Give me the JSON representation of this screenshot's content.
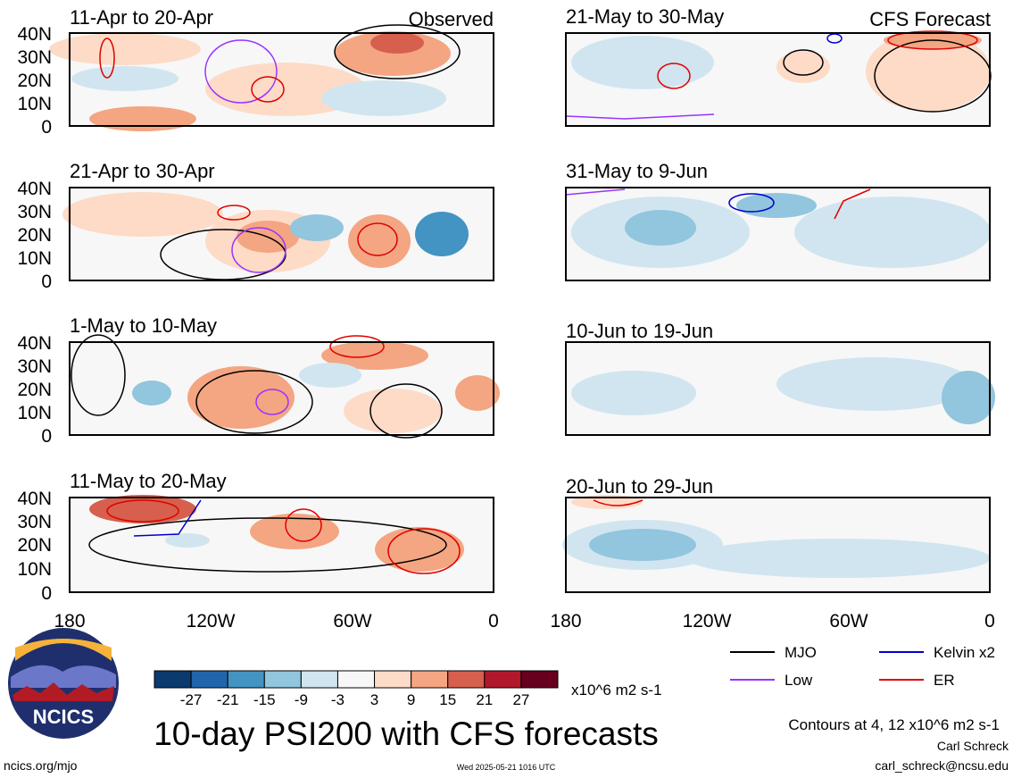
{
  "header": {
    "left_label": "Observed",
    "right_label": "CFS Forecast"
  },
  "panels_observed": [
    {
      "period": "11-Apr to 20-Apr"
    },
    {
      "period": "21-Apr to 30-Apr"
    },
    {
      "period": "1-May to 10-May"
    },
    {
      "period": "11-May to 20-May"
    }
  ],
  "panels_forecast": [
    {
      "period": "21-May to 30-May"
    },
    {
      "period": "31-May to 9-Jun"
    },
    {
      "period": "10-Jun to 19-Jun"
    },
    {
      "period": "20-Jun to 29-Jun"
    }
  ],
  "axes": {
    "lat_labels": [
      "40N",
      "30N",
      "20N",
      "10N",
      "0"
    ],
    "lon_labels": [
      "180",
      "120W",
      "60W",
      "0"
    ]
  },
  "colorbar": {
    "levels": [
      "-27",
      "-21",
      "-15",
      "-9",
      "-3",
      "3",
      "9",
      "15",
      "21",
      "27"
    ],
    "colors": [
      "#0b3a6e",
      "#2166ac",
      "#4393c3",
      "#92c5de",
      "#d1e5f0",
      "#f7f7f7",
      "#fddbc7",
      "#f4a582",
      "#d6604d",
      "#b2182b",
      "#67001f"
    ],
    "units": "x10^6 m2 s-1"
  },
  "contour_legend": [
    {
      "label": "MJO",
      "color": "#000000"
    },
    {
      "label": "Kelvin x2",
      "color": "#0000cc"
    },
    {
      "label": "Low",
      "color": "#9933ff"
    },
    {
      "label": "ER",
      "color": "#e00000"
    }
  ],
  "contour_note": "Contours at 4, 12 x10^6 m2 s-1",
  "title": "10-day PSI200 with CFS forecasts",
  "logo": {
    "text": "NCICS"
  },
  "footer": {
    "url": "ncics.org/mjo",
    "timestamp": "Wed 2025-05-21 1016 UTC",
    "author": "Carl Schreck",
    "email": "carl_schreck@ncsu.edu"
  }
}
